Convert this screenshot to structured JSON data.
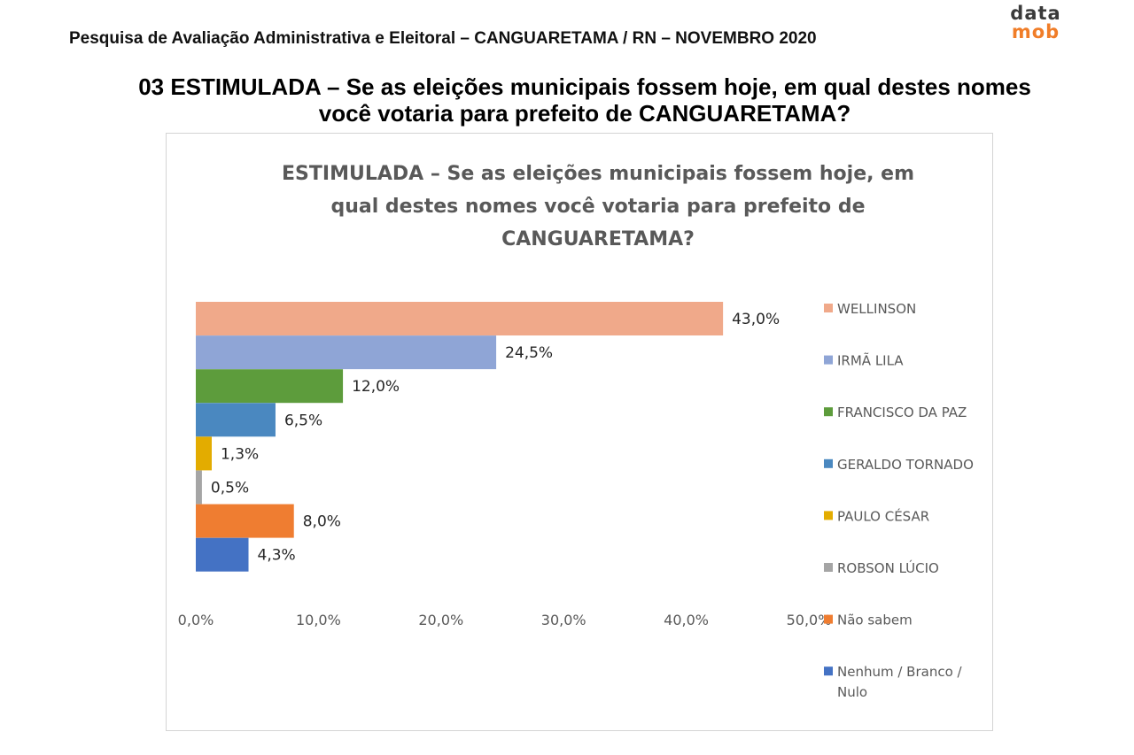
{
  "header": {
    "survey_title": "Pesquisa de Avaliação Administrativa e Eleitoral – CANGUARETAMA / RN – NOVEMBRO 2020",
    "logo_line1": "data",
    "logo_line2": "mob"
  },
  "question": {
    "line1": "03 ESTIMULADA – Se as eleições municipais fossem hoje, em qual destes nomes",
    "line2": "você votaria para prefeito de CANGUARETAMA?"
  },
  "chart_data": {
    "type": "bar",
    "orientation": "horizontal",
    "title_lines": [
      "ESTIMULADA – Se as eleições municipais fossem hoje,  em",
      "qual destes nomes você votaria para prefeito de",
      "CANGUARETAMA?"
    ],
    "categories": [
      "WELLINSON",
      "IRMÃ LILA",
      "FRANCISCO DA PAZ",
      "GERALDO TORNADO",
      "PAULO CÉSAR",
      "ROBSON LÚCIO",
      "Não sabem",
      "Nenhum / Branco / Nulo"
    ],
    "legend_lines": [
      [
        "WELLINSON"
      ],
      [
        "IRMÃ LILA"
      ],
      [
        "FRANCISCO DA PAZ"
      ],
      [
        "GERALDO TORNADO"
      ],
      [
        "PAULO CÉSAR"
      ],
      [
        "ROBSON LÚCIO"
      ],
      [
        "Não sabem"
      ],
      [
        "Nenhum / Branco /",
        "Nulo"
      ]
    ],
    "values": [
      43.0,
      24.5,
      12.0,
      6.5,
      1.3,
      0.5,
      8.0,
      4.3
    ],
    "data_labels": [
      "43,0%",
      "24,5%",
      "12,0%",
      "6,5%",
      "1,3%",
      "0,5%",
      "8,0%",
      "4,3%"
    ],
    "colors": [
      "#f0a98a",
      "#8fa5d6",
      "#5d9c3c",
      "#4a88c0",
      "#e3ac00",
      "#a5a5a5",
      "#ef7d31",
      "#4472c4"
    ],
    "x_ticks": [
      0,
      10,
      20,
      30,
      40,
      50
    ],
    "x_tick_labels": [
      "0,0%",
      "10,0%",
      "20,0%",
      "30,0%",
      "40,0%",
      "50,0%"
    ],
    "xlim": [
      0,
      50
    ],
    "grid": false,
    "legend_position": "right"
  }
}
